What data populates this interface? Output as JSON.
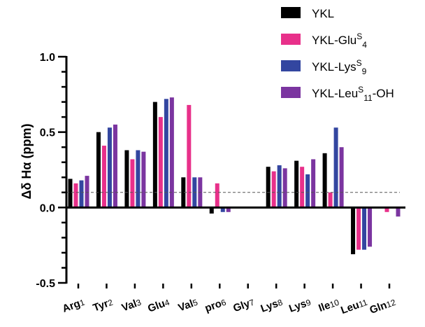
{
  "chart_data": {
    "type": "bar",
    "title": "",
    "ylabel": "Δδ Hα (ppm)",
    "ylim": [
      -0.5,
      1.0
    ],
    "yticks": [
      "1.0",
      "0.5",
      "0.0",
      "-0.5"
    ],
    "ytick_values": [
      1.0,
      0.5,
      0.0,
      -0.5
    ],
    "reference_line": 0.1,
    "legend_position": "top-right",
    "categories": [
      {
        "name": "Arg",
        "sub": "1"
      },
      {
        "name": "Tyr",
        "sub": "2"
      },
      {
        "name": "Val",
        "sub": "3"
      },
      {
        "name": "Glu",
        "sub": "4"
      },
      {
        "name": "Val",
        "sub": "5"
      },
      {
        "name": "pro",
        "sub": "6"
      },
      {
        "name": "Gly",
        "sub": "7"
      },
      {
        "name": "Lys",
        "sub": "8"
      },
      {
        "name": "Lys",
        "sub": "9"
      },
      {
        "name": "Ile",
        "sub": "10"
      },
      {
        "name": "Leu",
        "sub": "11"
      },
      {
        "name": "Gln",
        "sub": "12"
      }
    ],
    "series": [
      {
        "name": "YKL",
        "legend": {
          "base": "YKL",
          "sup": "",
          "sub": "",
          "tail": ""
        },
        "color": "#000000",
        "values": [
          0.19,
          0.5,
          0.38,
          0.7,
          0.2,
          -0.04,
          null,
          0.27,
          0.31,
          0.36,
          -0.31,
          null
        ]
      },
      {
        "name": "YKL-GluS4",
        "legend": {
          "base": "YKL-Glu",
          "sup": "S",
          "sub": "4",
          "tail": ""
        },
        "color": "#e8308a",
        "values": [
          0.16,
          0.41,
          0.32,
          0.6,
          0.68,
          0.16,
          null,
          0.24,
          0.27,
          0.1,
          -0.28,
          -0.03
        ]
      },
      {
        "name": "YKL-LysS9",
        "legend": {
          "base": "YKL-Lys",
          "sup": "S",
          "sub": "9",
          "tail": ""
        },
        "color": "#3346a0",
        "values": [
          0.18,
          0.53,
          0.38,
          0.72,
          0.2,
          -0.03,
          null,
          0.28,
          0.22,
          0.53,
          -0.28,
          null
        ]
      },
      {
        "name": "YKL-LeuS11-OH",
        "legend": {
          "base": "YKL-Leu",
          "sup": "S",
          "sub": "11",
          "tail": "-OH"
        },
        "color": "#7b35a0",
        "values": [
          0.21,
          0.55,
          0.37,
          0.73,
          0.2,
          -0.03,
          null,
          0.26,
          0.32,
          0.4,
          -0.26,
          -0.06
        ]
      }
    ]
  }
}
